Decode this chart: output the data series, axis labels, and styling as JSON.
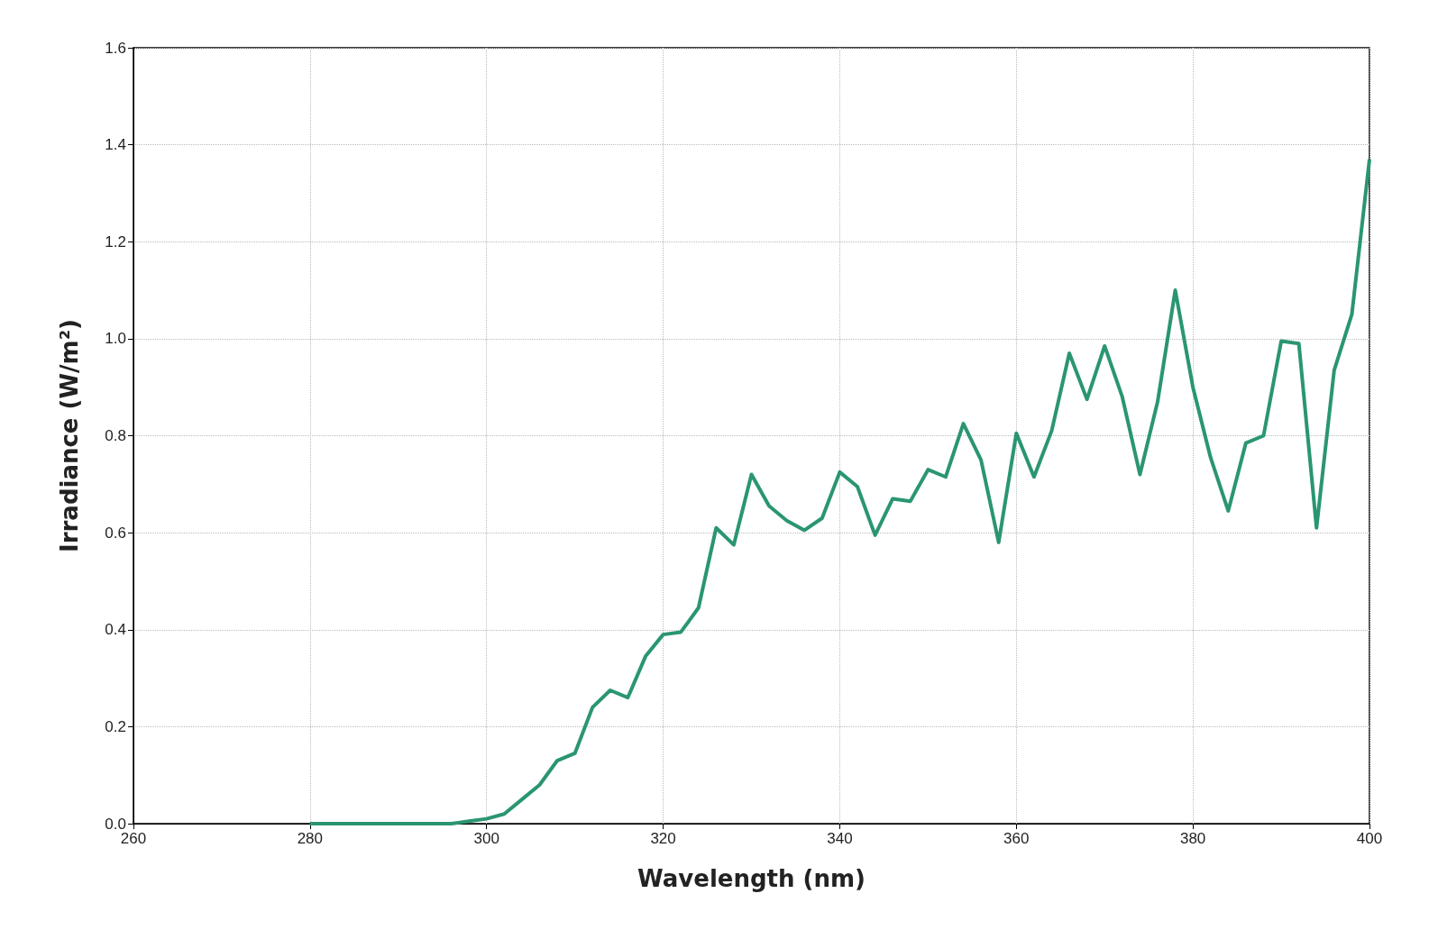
{
  "chart_data": {
    "type": "line",
    "xlabel": "Wavelength (nm)",
    "ylabel": "Irradiance (W/m²)",
    "x": [
      280,
      282,
      284,
      286,
      288,
      290,
      292,
      294,
      296,
      298,
      300,
      302,
      304,
      306,
      308,
      310,
      312,
      314,
      316,
      318,
      320,
      322,
      324,
      326,
      328,
      330,
      332,
      334,
      336,
      338,
      340,
      342,
      344,
      346,
      348,
      350,
      352,
      354,
      356,
      358,
      360,
      362,
      364,
      366,
      368,
      370,
      372,
      374,
      376,
      378,
      380,
      382,
      384,
      386,
      388,
      390,
      392,
      394,
      396,
      398,
      400
    ],
    "series": [
      {
        "color": "#2a9670",
        "values": [
          0,
          0,
          0,
          0,
          0,
          0,
          0,
          0,
          0,
          0.005,
          0.01,
          0.02,
          0.05,
          0.08,
          0.13,
          0.145,
          0.24,
          0.275,
          0.26,
          0.345,
          0.39,
          0.395,
          0.445,
          0.61,
          0.575,
          0.72,
          0.655,
          0.625,
          0.605,
          0.63,
          0.725,
          0.695,
          0.595,
          0.67,
          0.665,
          0.73,
          0.715,
          0.825,
          0.75,
          0.58,
          0.805,
          0.715,
          0.81,
          0.97,
          0.875,
          0.985,
          0.88,
          0.72,
          0.87,
          1.1,
          0.9,
          0.755,
          0.645,
          0.785,
          0.8,
          0.995,
          0.99,
          0.61,
          0.935,
          1.05,
          1.37
        ]
      }
    ],
    "xlim": [
      260,
      400
    ],
    "xticks": [
      260,
      280,
      300,
      320,
      340,
      360,
      380,
      400
    ],
    "ylim": [
      0,
      1.6
    ],
    "yticks": [
      {
        "value": 0,
        "label": "0.0"
      },
      {
        "value": 0.2,
        "label": "0.2"
      },
      {
        "value": 0.4,
        "label": "0.4"
      },
      {
        "value": 0.6,
        "label": "0.6"
      },
      {
        "value": 0.8,
        "label": "0.8"
      },
      {
        "value": 1,
        "label": "1.0"
      },
      {
        "value": 1.2,
        "label": "1.2"
      },
      {
        "value": 1.4,
        "label": "1.4"
      },
      {
        "value": 1.6,
        "label": "1.6"
      }
    ],
    "grid": true,
    "marker": "none",
    "line_style": "solid"
  }
}
